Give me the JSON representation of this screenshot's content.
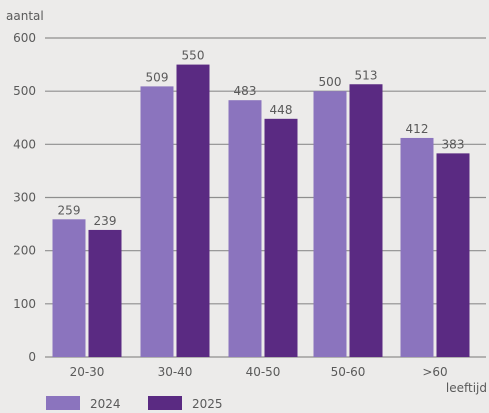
{
  "chart_data": {
    "type": "bar",
    "ylabel": "aantal",
    "xlabel": "leeftijd",
    "categories": [
      "20-30",
      "30-40",
      "40-50",
      "50-60",
      ">60"
    ],
    "series": [
      {
        "name": "2024",
        "values": [
          259,
          509,
          483,
          500,
          412
        ],
        "color": "#8b74be"
      },
      {
        "name": "2025",
        "values": [
          239,
          550,
          448,
          513,
          383
        ],
        "color": "#5a2a82"
      }
    ],
    "ylim": [
      0,
      600
    ],
    "yticks": [
      0,
      100,
      200,
      300,
      400,
      500,
      600
    ],
    "grid": true,
    "legend": "bottom-left"
  }
}
